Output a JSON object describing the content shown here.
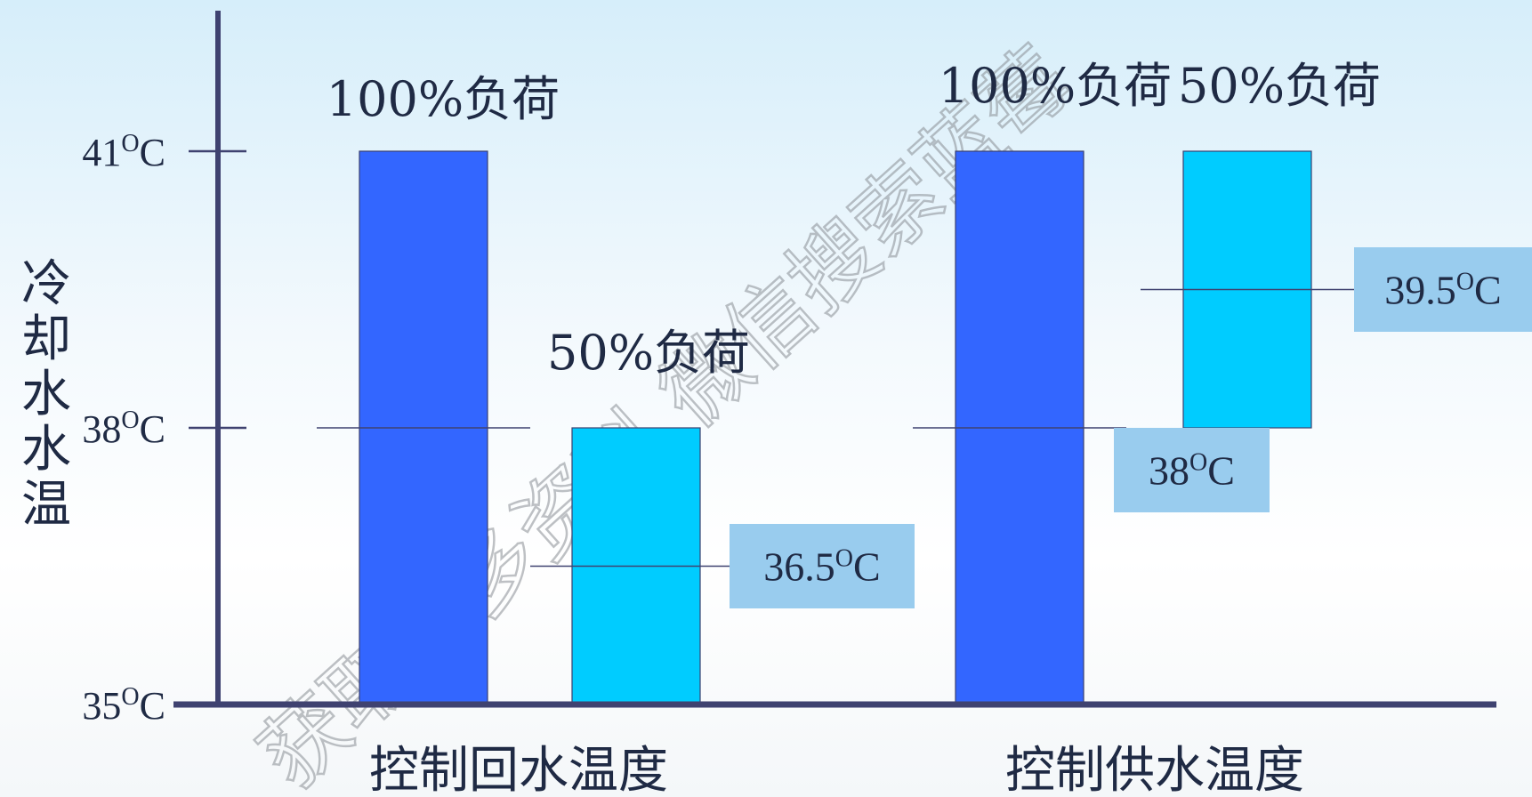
{
  "chart_data": {
    "type": "bar",
    "ylabel": "冷却水水温",
    "ylim": [
      35,
      41
    ],
    "y_ticks": [
      {
        "value": 41,
        "num": "41",
        "unit": "C",
        "sup": "O"
      },
      {
        "value": 38,
        "num": "38",
        "unit": "C",
        "sup": "O"
      },
      {
        "value": 35,
        "num": "35",
        "unit": "C",
        "sup": "O"
      }
    ],
    "categories": [
      "控制回水温度",
      "控制供水温度"
    ],
    "bars": [
      {
        "category": 0,
        "label": "100%负荷",
        "low": 35,
        "high": 41,
        "color": "#3366ff"
      },
      {
        "category": 0,
        "label": "50%负荷",
        "low": 35,
        "high": 38,
        "color": "#00ccff"
      },
      {
        "category": 1,
        "label": "100%负荷",
        "low": 35,
        "high": 41,
        "color": "#3366ff"
      },
      {
        "category": 1,
        "label": "50%负荷",
        "low": 38,
        "high": 41,
        "color": "#00ccff"
      }
    ],
    "reference_lines": [
      {
        "value": 38,
        "bar": 0
      },
      {
        "value": 36.5,
        "bar": 1,
        "callout": {
          "num": "36.5",
          "sup": "O",
          "unit": "C"
        }
      },
      {
        "value": 38,
        "bar": 2,
        "callout": {
          "num": "38",
          "sup": "O",
          "unit": "C"
        }
      },
      {
        "value": 39.5,
        "bar": 3,
        "callout": {
          "num": "39.5",
          "sup": "O",
          "unit": "C"
        }
      }
    ],
    "callout_color": "#99ccee",
    "axis_color": "#3f4270"
  },
  "watermark": {
    "text": "获取更多资料 微信搜索蓝莓"
  }
}
